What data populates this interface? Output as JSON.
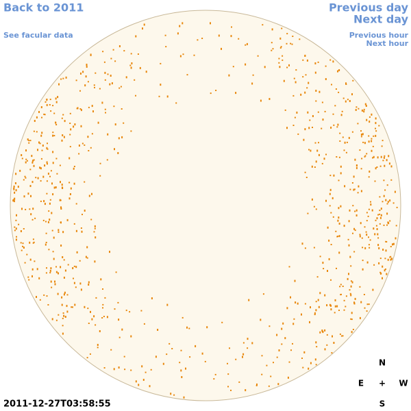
{
  "links": {
    "back": "Back to 2011",
    "facular_data": "See facular data",
    "previous_day": "Previous day",
    "next_day": "Next day",
    "previous_hour": "Previous hour",
    "next_hour": "Next hour"
  },
  "timestamp": "2011-12-27T03:58:55",
  "compass": {
    "north": "N",
    "east": "E",
    "center": "+",
    "west": "W",
    "south": "S"
  }
}
